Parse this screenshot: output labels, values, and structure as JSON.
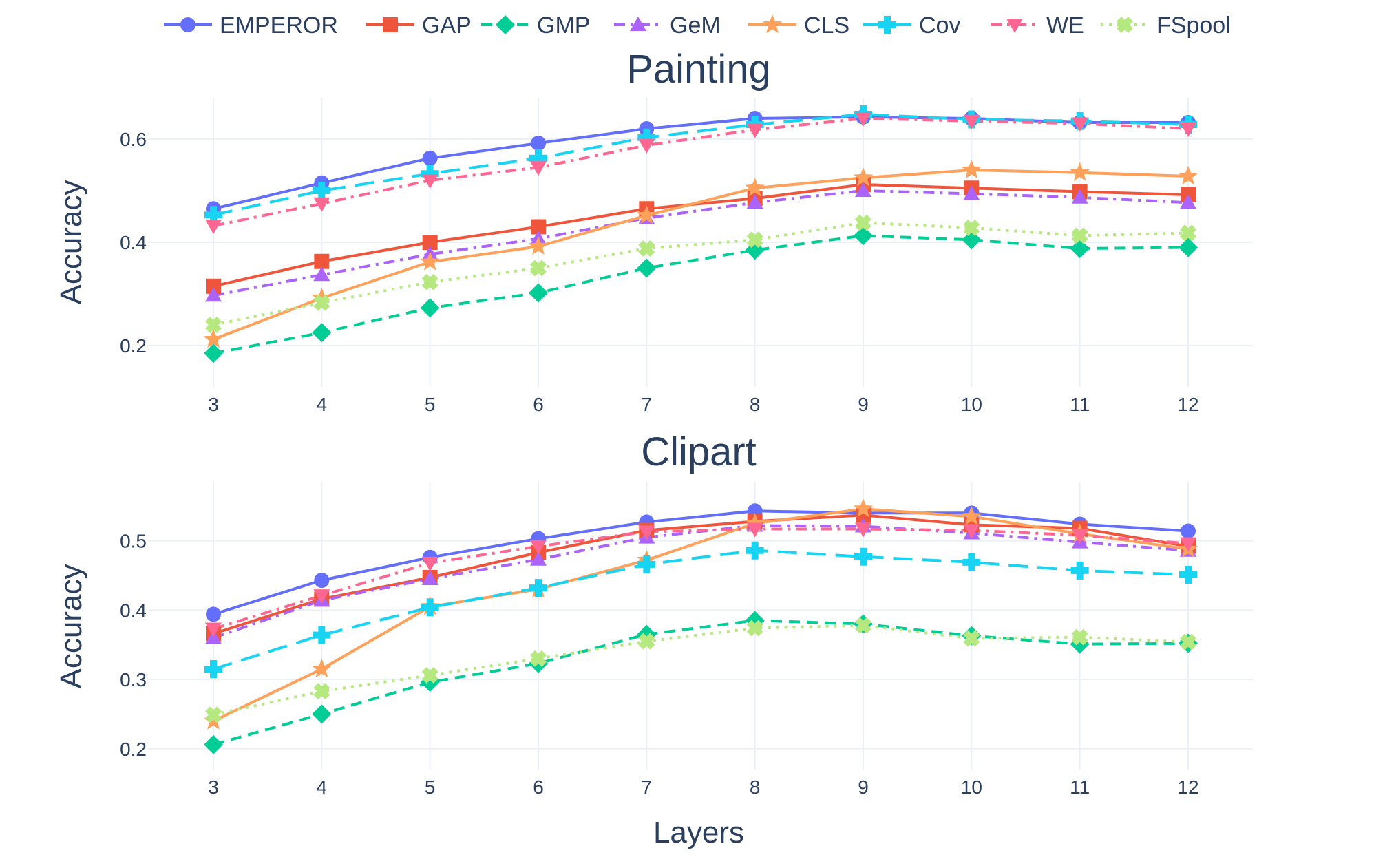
{
  "chart_data": {
    "type": "line",
    "xlabel": "Layers",
    "x": [
      3,
      4,
      5,
      6,
      7,
      8,
      9,
      10,
      11,
      12
    ],
    "legend": {
      "placement": "top-center",
      "orientation": "horizontal"
    },
    "grid": true,
    "series_styles": [
      {
        "name": "EMPEROR",
        "color": "#636efa",
        "dash": "solid",
        "marker": "circle"
      },
      {
        "name": "GAP",
        "color": "#ef553b",
        "dash": "solid",
        "marker": "square"
      },
      {
        "name": "GMP",
        "color": "#00cc96",
        "dash": "dash",
        "marker": "diamond"
      },
      {
        "name": "GeM",
        "color": "#ab63fa",
        "dash": "dashdot",
        "marker": "triangle-up"
      },
      {
        "name": "CLS",
        "color": "#ffa15a",
        "dash": "solid",
        "marker": "star"
      },
      {
        "name": "Cov",
        "color": "#19d3f3",
        "dash": "longdash",
        "marker": "cross"
      },
      {
        "name": "WE",
        "color": "#ff6692",
        "dash": "dashdot",
        "marker": "triangle-down"
      },
      {
        "name": "FSpool",
        "color": "#b6e880",
        "dash": "dot",
        "marker": "x"
      }
    ],
    "panels": [
      {
        "title": "Painting",
        "ylabel": "Accuracy",
        "ylim": [
          0.12,
          0.68
        ],
        "yticks": [
          0.2,
          0.4,
          0.6
        ],
        "ytick_labels": [
          "0.2",
          "0.4",
          "0.6"
        ],
        "series": [
          {
            "name": "EMPEROR",
            "values": [
              0.465,
              0.515,
              0.563,
              0.592,
              0.62,
              0.64,
              0.643,
              0.64,
              0.632,
              0.632
            ]
          },
          {
            "name": "GAP",
            "values": [
              0.315,
              0.363,
              0.4,
              0.43,
              0.465,
              0.485,
              0.512,
              0.505,
              0.498,
              0.492
            ]
          },
          {
            "name": "GMP",
            "values": [
              0.185,
              0.225,
              0.273,
              0.302,
              0.35,
              0.385,
              0.413,
              0.405,
              0.388,
              0.39
            ]
          },
          {
            "name": "GeM",
            "values": [
              0.297,
              0.337,
              0.377,
              0.407,
              0.447,
              0.477,
              0.5,
              0.494,
              0.487,
              0.477
            ]
          },
          {
            "name": "CLS",
            "values": [
              0.212,
              0.292,
              0.362,
              0.392,
              0.452,
              0.505,
              0.525,
              0.54,
              0.535,
              0.528
            ]
          },
          {
            "name": "Cov",
            "values": [
              0.453,
              0.5,
              0.533,
              0.563,
              0.603,
              0.628,
              0.648,
              0.638,
              0.635,
              0.628
            ]
          },
          {
            "name": "WE",
            "values": [
              0.432,
              0.475,
              0.52,
              0.545,
              0.588,
              0.618,
              0.64,
              0.635,
              0.63,
              0.62
            ]
          },
          {
            "name": "FSpool",
            "values": [
              0.24,
              0.283,
              0.323,
              0.35,
              0.388,
              0.405,
              0.438,
              0.428,
              0.413,
              0.418
            ]
          }
        ]
      },
      {
        "title": "Clipart",
        "ylabel": "Accuracy",
        "ylim": [
          0.17,
          0.585
        ],
        "yticks": [
          0.2,
          0.3,
          0.4,
          0.5
        ],
        "ytick_labels": [
          "0.2",
          "0.3",
          "0.4",
          "0.5"
        ],
        "series": [
          {
            "name": "EMPEROR",
            "values": [
              0.394,
              0.443,
              0.476,
              0.503,
              0.527,
              0.543,
              0.54,
              0.54,
              0.524,
              0.514
            ]
          },
          {
            "name": "GAP",
            "values": [
              0.366,
              0.416,
              0.447,
              0.483,
              0.515,
              0.528,
              0.537,
              0.523,
              0.518,
              0.492
            ]
          },
          {
            "name": "GMP",
            "values": [
              0.206,
              0.25,
              0.296,
              0.323,
              0.365,
              0.385,
              0.38,
              0.363,
              0.351,
              0.352
            ]
          },
          {
            "name": "GeM",
            "values": [
              0.36,
              0.414,
              0.445,
              0.473,
              0.505,
              0.522,
              0.521,
              0.511,
              0.498,
              0.486
            ]
          },
          {
            "name": "CLS",
            "values": [
              0.24,
              0.315,
              0.405,
              0.43,
              0.472,
              0.525,
              0.546,
              0.535,
              0.51,
              0.488
            ]
          },
          {
            "name": "Cov",
            "values": [
              0.315,
              0.364,
              0.404,
              0.432,
              0.466,
              0.486,
              0.477,
              0.469,
              0.457,
              0.451
            ]
          },
          {
            "name": "WE",
            "values": [
              0.373,
              0.421,
              0.468,
              0.492,
              0.513,
              0.517,
              0.517,
              0.515,
              0.508,
              0.496
            ]
          },
          {
            "name": "FSpool",
            "values": [
              0.249,
              0.283,
              0.306,
              0.33,
              0.355,
              0.374,
              0.378,
              0.359,
              0.361,
              0.354
            ]
          }
        ]
      }
    ]
  }
}
